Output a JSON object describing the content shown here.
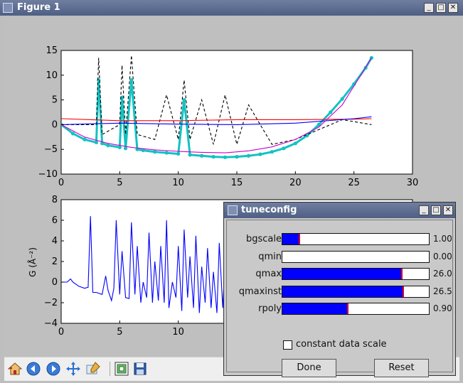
{
  "window": {
    "title": "Figure 1"
  },
  "dialog": {
    "title": "tuneconfig",
    "sliders": [
      {
        "label": "bgscale",
        "value": "1.00",
        "fill": 0.12
      },
      {
        "label": "qmin",
        "value": "0.00",
        "fill": 0.0
      },
      {
        "label": "qmax",
        "value": "26.0",
        "fill": 0.82
      },
      {
        "label": "qmaxinst",
        "value": "26.5",
        "fill": 0.83
      },
      {
        "label": "rpoly",
        "value": "0.90",
        "fill": 0.45
      }
    ],
    "checkbox_label": "constant data scale",
    "checkbox_checked": false,
    "done_label": "Done",
    "reset_label": "Reset"
  },
  "toolbar": {
    "icons": [
      "home-icon",
      "back-icon",
      "forward-icon",
      "pan-icon",
      "zoom-icon",
      "subplots-icon",
      "save-icon"
    ]
  },
  "chart_data": [
    {
      "type": "line",
      "xlim": [
        0,
        30
      ],
      "ylim": [
        -10,
        15
      ],
      "xticks": [
        "0",
        "5",
        "10",
        "15",
        "20",
        "25",
        "30"
      ],
      "yticks": [
        "15",
        "10",
        "5",
        "0",
        "−5",
        "−10"
      ],
      "series": [
        {
          "style": "cyan markers",
          "color": "#12c2c2",
          "x": [
            0,
            1,
            2,
            3,
            3.2,
            3.5,
            4,
            5,
            5.2,
            5.5,
            6,
            6.5,
            7,
            8,
            9,
            10,
            10.5,
            11,
            12,
            13,
            14,
            15,
            16,
            17,
            18,
            19,
            20,
            21,
            22,
            23,
            24,
            25,
            26,
            26.5
          ],
          "y": [
            0,
            -1.8,
            -3,
            -3.6,
            9,
            -3.8,
            -4.2,
            -4.6,
            5.5,
            -4.8,
            9,
            -5,
            -5.2,
            -5.5,
            -5.7,
            -5.9,
            5,
            -6.1,
            -6.3,
            -6.5,
            -6.6,
            -6.5,
            -6.3,
            -6,
            -5.5,
            -4.8,
            -3.8,
            -2.2,
            0,
            2.5,
            5.2,
            8.2,
            11.5,
            13.5
          ]
        },
        {
          "style": "black dashed",
          "color": "#000000",
          "x": [
            0,
            3,
            3.2,
            3.5,
            5,
            5.2,
            5.5,
            6,
            6.5,
            8,
            9,
            10,
            10.5,
            11,
            12,
            13,
            14,
            15,
            16,
            18,
            20,
            22,
            24,
            26.5
          ],
          "y": [
            0,
            0,
            13.5,
            -2,
            0,
            12,
            -2,
            14,
            -2,
            -3,
            6,
            -3,
            9,
            -3,
            5,
            -4,
            6,
            -4,
            4,
            -4,
            -3,
            -1,
            1,
            0
          ]
        },
        {
          "style": "red",
          "color": "#ff0000",
          "x": [
            0,
            5,
            10,
            15,
            20,
            25,
            26.5
          ],
          "y": [
            1.2,
            0.8,
            0.8,
            1.0,
            1.0,
            1.1,
            1.2
          ]
        },
        {
          "style": "blue",
          "color": "#0000ff",
          "x": [
            0,
            5,
            10,
            15,
            20,
            25,
            26.5
          ],
          "y": [
            0,
            0.3,
            0.1,
            0,
            0.3,
            1.2,
            1.6
          ]
        },
        {
          "style": "magenta",
          "color": "#cc00cc",
          "x": [
            0,
            2,
            4,
            6,
            8,
            10,
            12,
            14,
            16,
            18,
            20,
            22,
            24,
            26.5
          ],
          "y": [
            0,
            -2.5,
            -3.8,
            -4.6,
            -5.1,
            -5.4,
            -5.6,
            -5.7,
            -5.3,
            -4.5,
            -3,
            -0.5,
            4,
            13.5
          ]
        }
      ]
    },
    {
      "type": "line",
      "ylabel": "G (Å⁻²)",
      "xlim": [
        0,
        30
      ],
      "ylim": [
        -4,
        8
      ],
      "xticks": [
        "0",
        "5",
        "10"
      ],
      "yticks": [
        "8",
        "6",
        "4",
        "2",
        "0",
        "−2",
        "−4"
      ],
      "series": [
        {
          "color": "#0000ff",
          "x": [
            0,
            0.5,
            0.8,
            1,
            1.5,
            2,
            2.3,
            2.5,
            2.7,
            3,
            3.5,
            3.8,
            4,
            4.3,
            4.5,
            4.7,
            5,
            5.2,
            5.5,
            5.8,
            6,
            6.3,
            6.5,
            6.8,
            7,
            7.3,
            7.5,
            7.8,
            8,
            8.3,
            8.5,
            8.8,
            9,
            9.2,
            9.5,
            9.8,
            10,
            10.3,
            10.5,
            10.8,
            11,
            11.3,
            11.5,
            11.8,
            12,
            12.3,
            12.5,
            12.8,
            13,
            13.3,
            13.5,
            13.8,
            14,
            14.2
          ],
          "y": [
            0,
            0,
            0.3,
            0,
            -0.4,
            -0.6,
            -0.5,
            6.4,
            -1,
            -1,
            -1.2,
            0.6,
            -0.8,
            -1.8,
            -0.6,
            6,
            -1.2,
            3,
            -1.5,
            -1.6,
            5.8,
            -1.2,
            3.5,
            -2,
            0,
            -1.5,
            4.8,
            -2,
            2,
            -1.8,
            3.5,
            -2,
            6,
            -2.5,
            0,
            -1.5,
            3.5,
            -2.8,
            5.1,
            -1.5,
            2.5,
            -2.5,
            4.5,
            -3,
            1.5,
            -2,
            3.3,
            -2.5,
            1,
            -3,
            3.8,
            -2.5,
            2.2,
            -3.2
          ]
        }
      ]
    }
  ]
}
